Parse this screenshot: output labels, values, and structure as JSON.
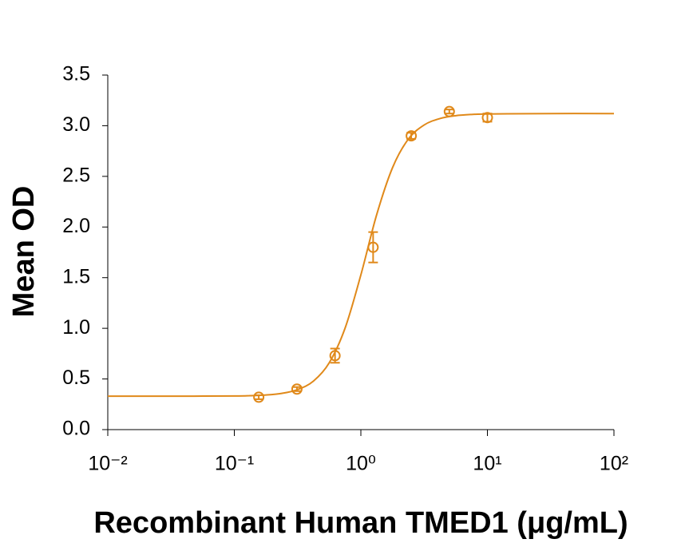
{
  "chart_data": {
    "type": "scatter",
    "xlabel": "Recombinant Human TMED1 (μg/mL)",
    "ylabel": "Mean OD",
    "xscale": "log",
    "xlim": [
      0.01,
      100
    ],
    "xticks": [
      {
        "value": 0.01,
        "label": "10⁻²"
      },
      {
        "value": 0.1,
        "label": "10⁻¹"
      },
      {
        "value": 1,
        "label": "10⁰"
      },
      {
        "value": 10,
        "label": "10¹"
      },
      {
        "value": 100,
        "label": "10²"
      }
    ],
    "ylim": [
      0,
      3.5
    ],
    "yticks": [
      {
        "value": 0,
        "label": "0.0"
      },
      0.5,
      {
        "value": 1,
        "label": "1.0"
      },
      1.5,
      {
        "value": 2,
        "label": "2.0"
      },
      2.5,
      {
        "value": 3,
        "label": "3.0"
      },
      3.5
    ],
    "series": [
      {
        "type": "scatter",
        "color": "#e0891a",
        "x": [
          0.156,
          0.3125,
          0.625,
          1.25,
          2.5,
          5,
          10
        ],
        "values": [
          0.32,
          0.4,
          0.73,
          1.8,
          2.9,
          3.14,
          3.08
        ],
        "errors": [
          0.02,
          0.02,
          0.07,
          0.15,
          0.03,
          0.02,
          0.04
        ]
      },
      {
        "type": "line",
        "color": "#e0891a",
        "x": [
          0.01,
          0.0316,
          0.1,
          0.133,
          0.178,
          0.237,
          0.316,
          0.422,
          0.562,
          0.75,
          1,
          1.33,
          1.78,
          2.37,
          3.16,
          4.22,
          5.62,
          7.5,
          10,
          31.6,
          100
        ],
        "values": [
          0.33,
          0.33,
          0.332,
          0.335,
          0.342,
          0.358,
          0.395,
          0.479,
          0.659,
          1.001,
          1.527,
          2.117,
          2.586,
          2.867,
          3.007,
          3.071,
          3.099,
          3.111,
          3.116,
          3.12,
          3.12
        ]
      }
    ]
  }
}
